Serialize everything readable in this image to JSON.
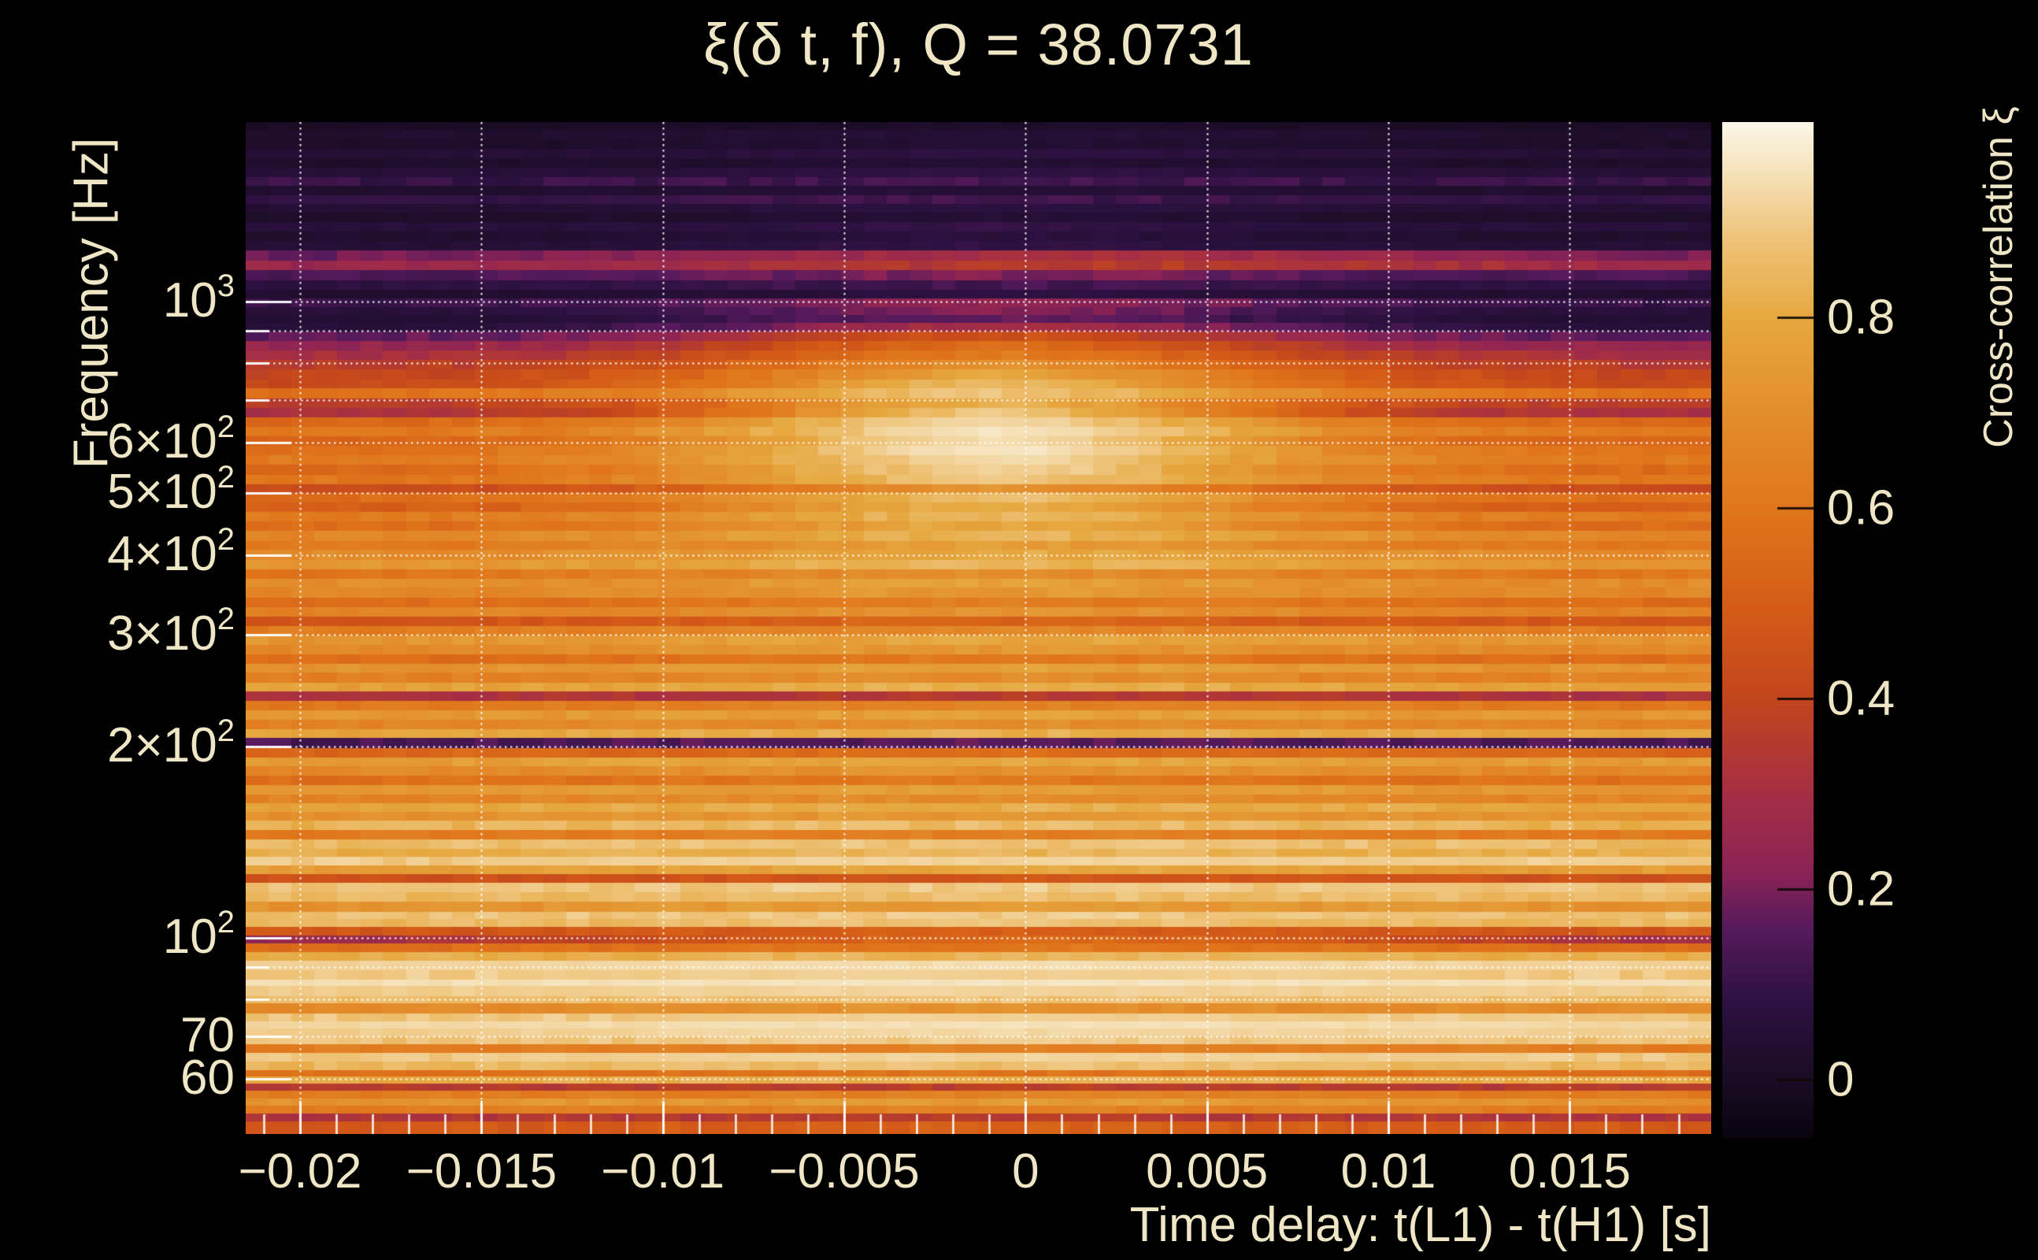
{
  "title": "ξ(δ t, f), Q = 38.0731",
  "q_value": 38.0731,
  "colors": {
    "background": "#000000",
    "text": "#EFE6C6",
    "grid": "rgba(255,255,255,0.95)"
  },
  "axes": {
    "x": {
      "title": "Time delay: t(L1) - t(H1) [s]",
      "min": -0.0215,
      "max": 0.0189,
      "minor_step": 0.001,
      "ticks": [
        {
          "v": -0.02,
          "label": "−0.02"
        },
        {
          "v": -0.015,
          "label": "−0.015"
        },
        {
          "v": -0.01,
          "label": "−0.01"
        },
        {
          "v": -0.005,
          "label": "−0.005"
        },
        {
          "v": 0,
          "label": "0"
        },
        {
          "v": 0.005,
          "label": "0.005"
        },
        {
          "v": 0.01,
          "label": "0.01"
        },
        {
          "v": 0.015,
          "label": "0.015"
        }
      ]
    },
    "y": {
      "title": "Frequency [Hz]",
      "scale": "log",
      "min": 49.2,
      "max": 1915,
      "ticks": [
        {
          "f": 1000,
          "mant": "10",
          "exp": "3"
        },
        {
          "f": 600,
          "mant": "6×10",
          "exp": "2"
        },
        {
          "f": 500,
          "mant": "5×10",
          "exp": "2"
        },
        {
          "f": 400,
          "mant": "4×10",
          "exp": "2"
        },
        {
          "f": 300,
          "mant": "3×10",
          "exp": "2"
        },
        {
          "f": 200,
          "mant": "2×10",
          "exp": "2"
        },
        {
          "f": 100,
          "mant": "10",
          "exp": "2"
        },
        {
          "f": 70,
          "mant": "70",
          "exp": ""
        },
        {
          "f": 60,
          "mant": "60",
          "exp": ""
        }
      ],
      "gridlines": [
        60,
        70,
        80,
        90,
        100,
        200,
        300,
        400,
        500,
        600,
        700,
        800,
        900,
        1000
      ]
    },
    "colorbar": {
      "title": "Cross-correlation ξ",
      "vmin": -0.061,
      "vmax": 1.005,
      "ticks": [
        {
          "v": 0.8,
          "label": "0.8"
        },
        {
          "v": 0.6,
          "label": "0.6"
        },
        {
          "v": 0.4,
          "label": "0.4"
        },
        {
          "v": 0.2,
          "label": "0.2"
        },
        {
          "v": 0,
          "label": "0"
        }
      ]
    }
  },
  "chart_data": {
    "type": "heatmap",
    "title": "ξ(δ t, f), Q = 38.0731",
    "xlabel": "Time delay: t(L1) - t(H1) [s]",
    "ylabel": "Frequency [Hz]",
    "zlabel": "Cross-correlation ξ",
    "x_range_s": [
      -0.0215,
      0.0189
    ],
    "freq_range_hz": [
      49.2,
      1915
    ],
    "z_range": [
      -0.061,
      1.005
    ],
    "time_bins": 64,
    "bump_center_s": -0.0008,
    "sigma_high_s": 0.006,
    "sigma_mid_s": 0.007,
    "sigma_low_s": 0.01,
    "noise_amp": 0.055,
    "colormap_stops": [
      [
        -0.061,
        "#090410"
      ],
      [
        0.0,
        "#1a0c24"
      ],
      [
        0.08,
        "#2c1140"
      ],
      [
        0.16,
        "#571a5c"
      ],
      [
        0.22,
        "#8c2355"
      ],
      [
        0.3,
        "#a52e44"
      ],
      [
        0.4,
        "#c2451c"
      ],
      [
        0.5,
        "#d55d17"
      ],
      [
        0.6,
        "#e0761b"
      ],
      [
        0.7,
        "#e38d2c"
      ],
      [
        0.8,
        "#e6a83f"
      ],
      [
        0.88,
        "#eec277"
      ],
      [
        0.94,
        "#f4dcae"
      ],
      [
        1.005,
        "#fbf7e8"
      ]
    ],
    "rows": [
      [
        1915,
        0.005,
        0.02
      ],
      [
        1860,
        0.03,
        0.055
      ],
      [
        1800,
        0.015,
        0.04
      ],
      [
        1740,
        0.05,
        0.08
      ],
      [
        1680,
        0.02,
        0.045
      ],
      [
        1625,
        0.055,
        0.085
      ],
      [
        1570,
        0.1,
        0.13
      ],
      [
        1520,
        0.03,
        0.06
      ],
      [
        1470,
        0.09,
        0.12
      ],
      [
        1425,
        0.045,
        0.08
      ],
      [
        1380,
        0.02,
        0.05
      ],
      [
        1335,
        0.06,
        0.095
      ],
      [
        1290,
        0.03,
        0.07
      ],
      [
        1245,
        0.05,
        0.09
      ],
      [
        1205,
        0.18,
        0.3,
        0.009,
        0.002
      ],
      [
        1160,
        0.25,
        0.36,
        0.009,
        0.002
      ],
      [
        1120,
        0.14,
        0.21
      ],
      [
        1080,
        0.08,
        0.13
      ],
      [
        1045,
        0.03,
        0.08
      ],
      [
        1012,
        0.1,
        0.25
      ],
      [
        980,
        0.06,
        0.22
      ],
      [
        952,
        0.04,
        0.18
      ],
      [
        925,
        0.06,
        0.3
      ],
      [
        898,
        0.16,
        0.45
      ],
      [
        868,
        0.24,
        0.55
      ],
      [
        838,
        0.3,
        0.62
      ],
      [
        810,
        0.36,
        0.7
      ],
      [
        782,
        0.4,
        0.78
      ],
      [
        755,
        0.42,
        0.84
      ],
      [
        730,
        0.58,
        0.88
      ],
      [
        705,
        0.36,
        0.82
      ],
      [
        681,
        0.3,
        0.88
      ],
      [
        658,
        0.54,
        0.93
      ],
      [
        636,
        0.6,
        0.96
      ],
      [
        614,
        0.52,
        0.94
      ],
      [
        593,
        0.58,
        0.96
      ],
      [
        573,
        0.62,
        0.93
      ],
      [
        554,
        0.55,
        0.91
      ],
      [
        535,
        0.6,
        0.89
      ],
      [
        517,
        0.42,
        0.72
      ],
      [
        500,
        0.56,
        0.86
      ],
      [
        483,
        0.5,
        0.82
      ],
      [
        467,
        0.62,
        0.85
      ],
      [
        451,
        0.56,
        0.8
      ],
      [
        436,
        0.66,
        0.84
      ],
      [
        421,
        0.6,
        0.76
      ],
      [
        407,
        0.68,
        0.8
      ],
      [
        393,
        0.73,
        0.84
      ],
      [
        380,
        0.6,
        0.7
      ],
      [
        367,
        0.69,
        0.77
      ],
      [
        355,
        0.67,
        0.74
      ],
      [
        343,
        0.56,
        0.63
      ],
      [
        331,
        0.65,
        0.72
      ],
      [
        320,
        0.46,
        0.53
      ],
      [
        309,
        0.62,
        0.68
      ],
      [
        299,
        0.73,
        0.79
      ],
      [
        289,
        0.68,
        0.74
      ],
      [
        279,
        0.56,
        0.62
      ],
      [
        270,
        0.72,
        0.77
      ],
      [
        261,
        0.64,
        0.7
      ],
      [
        252,
        0.77,
        0.82
      ],
      [
        244,
        0.3,
        0.35
      ],
      [
        236,
        0.6,
        0.65
      ],
      [
        228,
        0.72,
        0.77
      ],
      [
        220,
        0.64,
        0.7
      ],
      [
        213,
        0.77,
        0.82
      ],
      [
        206,
        0.13,
        0.16
      ],
      [
        199,
        0.52,
        0.56
      ],
      [
        192,
        0.75,
        0.79
      ],
      [
        186,
        0.67,
        0.72
      ],
      [
        180,
        0.56,
        0.61
      ],
      [
        174,
        0.72,
        0.76
      ],
      [
        168,
        0.65,
        0.69
      ],
      [
        163,
        0.78,
        0.82
      ],
      [
        158,
        0.7,
        0.74
      ],
      [
        153,
        0.82,
        0.86
      ],
      [
        148,
        0.61,
        0.64
      ],
      [
        143,
        0.85,
        0.88
      ],
      [
        138,
        0.8,
        0.84
      ],
      [
        134,
        0.89,
        0.92
      ],
      [
        130,
        0.75,
        0.79
      ],
      [
        126,
        0.44,
        0.47
      ],
      [
        122,
        0.87,
        0.9
      ],
      [
        118,
        0.84,
        0.87
      ],
      [
        114,
        0.71,
        0.75
      ],
      [
        110,
        0.87,
        0.9
      ],
      [
        107,
        0.84,
        0.87
      ],
      [
        104,
        0.46,
        0.5
      ],
      [
        101,
        0.15,
        0.55,
        0.012,
        0.0
      ],
      [
        98,
        0.56,
        0.6
      ],
      [
        95,
        0.8,
        0.84
      ],
      [
        92,
        0.91,
        0.94
      ],
      [
        89,
        0.89,
        0.91
      ],
      [
        86,
        0.94,
        0.96
      ],
      [
        84,
        0.9,
        0.92
      ],
      [
        81,
        0.86,
        0.88
      ],
      [
        79,
        0.68,
        0.71
      ],
      [
        76,
        0.88,
        0.91
      ],
      [
        74,
        0.92,
        0.95
      ],
      [
        72,
        0.9,
        0.93
      ],
      [
        70,
        0.87,
        0.9
      ],
      [
        68,
        0.62,
        0.65
      ],
      [
        66,
        0.89,
        0.92
      ],
      [
        64,
        0.84,
        0.87
      ],
      [
        62,
        0.56,
        0.59
      ],
      [
        60.5,
        0.8,
        0.83
      ],
      [
        59,
        0.34,
        0.37
      ],
      [
        57.5,
        0.62,
        0.65
      ],
      [
        56,
        0.72,
        0.75
      ],
      [
        54.5,
        0.62,
        0.65
      ],
      [
        53,
        0.32,
        0.35
      ],
      [
        51.5,
        0.48,
        0.51
      ]
    ]
  }
}
